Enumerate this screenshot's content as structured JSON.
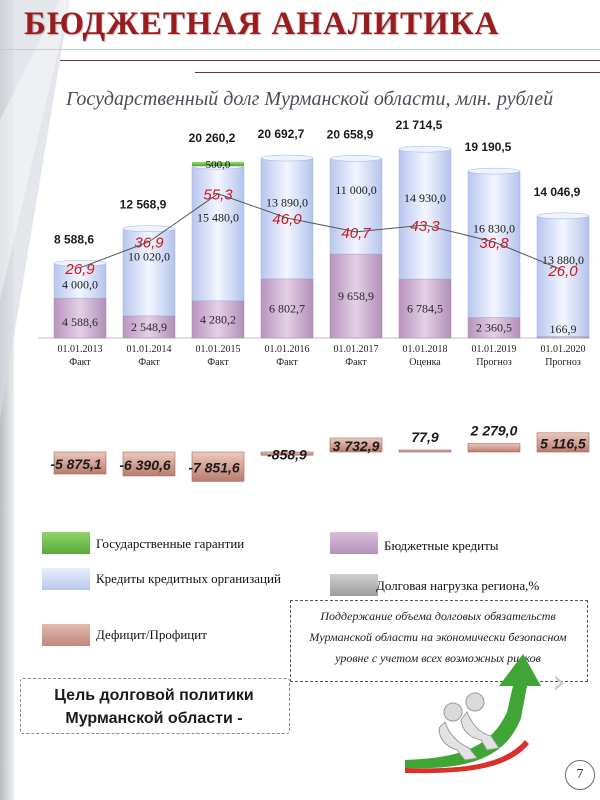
{
  "header": {
    "title": "БЮДЖЕТНАЯ АНАЛИТИКА"
  },
  "colors": {
    "title": "#9a1c1f",
    "guarantees": "#6fc247",
    "credit_org": "#c9d6f3",
    "budget_credits": "#c9a9cc",
    "deficit": "#cf9c90",
    "load_line": "#555555",
    "load_value": "#d0141c"
  },
  "chart_data": {
    "type": "bar",
    "title": "Государственный долг Мурманской области, млн. рублей",
    "categories": [
      "01.01.2013",
      "01.01.2014",
      "01.01.2015",
      "01.01.2016",
      "01.01.2017",
      "01.01.2018",
      "01.01.2019",
      "01.01.2020"
    ],
    "category_notes": [
      "Факт",
      "Факт",
      "Факт",
      "Факт",
      "Факт",
      "Оценка",
      "Прогноз",
      "Прогноз"
    ],
    "totals": [
      8588.6,
      12568.9,
      20260.2,
      20692.7,
      20658.9,
      21714.5,
      19190.5,
      14046.9
    ],
    "total_labels": [
      "8 588,6",
      "12 568,9",
      "20 260,2",
      "20 692,7",
      "20 658,9",
      "21 714,5",
      "19 190,5",
      "14 046,9"
    ],
    "series": [
      {
        "name": "Бюджетные кредиты",
        "values": [
          4588.6,
          2548.9,
          4280.2,
          6802.7,
          9658.9,
          6784.5,
          2360.5,
          166.9
        ],
        "labels": [
          "4 588,6",
          "2 548,9",
          "4 280,2",
          "6 802,7",
          "9 658,9",
          "6 784,5",
          "2 360,5",
          "166,9"
        ]
      },
      {
        "name": "Кредиты кредитных организаций",
        "values": [
          4000.0,
          10020.0,
          15480.0,
          13890.0,
          11000.0,
          14930.0,
          16830.0,
          13880.0
        ],
        "labels": [
          "4 000,0",
          "10 020,0",
          "15 480,0",
          "13 890,0",
          "11 000,0",
          "14 930,0",
          "16 830,0",
          "13 880,0"
        ]
      },
      {
        "name": "Государственные гарантии",
        "values": [
          0,
          0,
          500.0,
          0,
          0,
          0,
          0,
          0
        ],
        "labels": [
          "",
          "",
          "500,0",
          "",
          "",
          "",
          "",
          ""
        ]
      }
    ],
    "load": {
      "name": "Долговая нагрузка региона,%",
      "values": [
        26.9,
        36.9,
        55.3,
        46.0,
        40.7,
        43.3,
        36.8,
        26.0
      ],
      "labels": [
        "26,9",
        "36,9",
        "55,3",
        "46,0",
        "40,7",
        "43,3",
        "36,8",
        "26,0"
      ]
    },
    "balance": {
      "name": "Дефицит/Профицит",
      "values": [
        -5875.1,
        -6390.6,
        -7851.6,
        -858.9,
        3732.9,
        77.9,
        2279.0,
        5116.5
      ],
      "labels": [
        "-5 875,1",
        "-6 390,6",
        "-7 851,6",
        "-858,9",
        "3 732,9",
        "77,9",
        "2 279,0",
        "5 116,5"
      ]
    },
    "ylim": [
      0,
      23000
    ]
  },
  "legend": {
    "guarantees": "Государственные гарантии",
    "budget_credits": "Бюджетные кредиты",
    "credit_org": "Кредиты кредитных организаций",
    "load": "Долговая нагрузка региона,%",
    "deficit": "Дефицит/Профицит"
  },
  "note": {
    "text": "Поддержание объема долговых обязательств Мурманской области на экономически безопасном уровне с учетом всех возможных рисков"
  },
  "goal": {
    "line1": "Цель долговой политики",
    "line2": "Мурманской области -"
  },
  "page": {
    "number": "7"
  }
}
